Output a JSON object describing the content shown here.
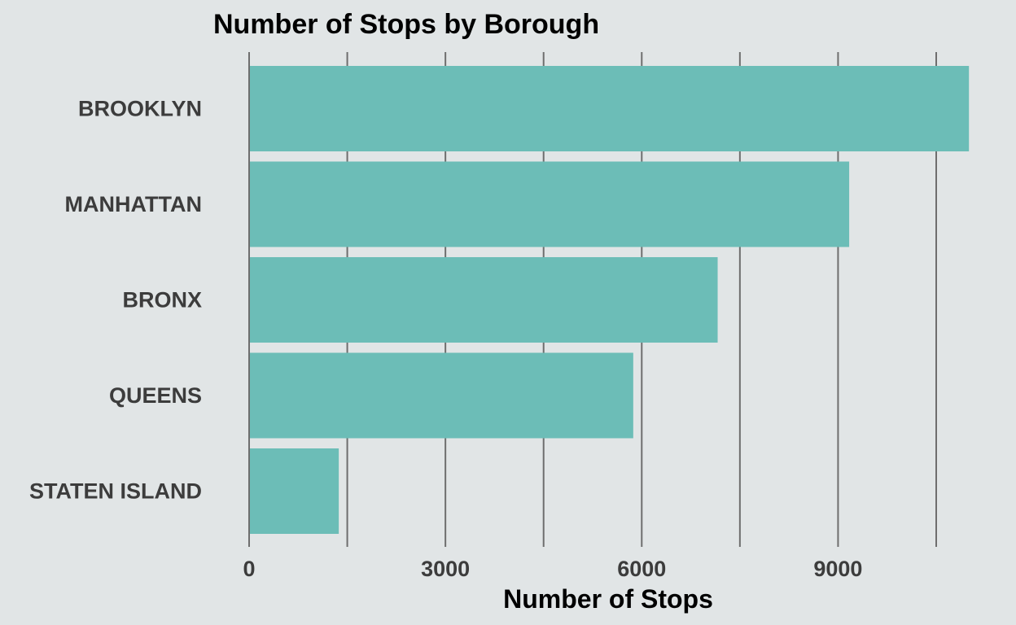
{
  "colors": {
    "background": "#e1e5e6",
    "bar": "#6cbdb7",
    "grid": "#6e6e6e",
    "text": "#3c3c3c"
  },
  "chart_data": {
    "type": "bar",
    "orientation": "horizontal",
    "title": "Number of Stops by Borough",
    "xlabel": "Number of Stops",
    "ylabel": "",
    "categories": [
      "BROOKLYN",
      "MANHATTAN",
      "BRONX",
      "QUEENS",
      "STATEN ISLAND"
    ],
    "values": [
      11000,
      9170,
      7160,
      5870,
      1370
    ],
    "xlim": [
      0,
      11000
    ],
    "xticks": [
      0,
      3000,
      6000,
      9000
    ],
    "minor_gridlines": [
      1500,
      4500,
      7500,
      10500
    ],
    "grid": true,
    "legend": "none"
  }
}
